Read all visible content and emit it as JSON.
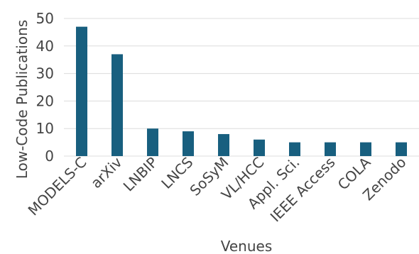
{
  "chart_data": {
    "type": "bar",
    "categories": [
      "MODELS-C",
      "arXiv",
      "LNBIP",
      "LNCS",
      "SoSyM",
      "VL/HCC",
      "Appl. Sci.",
      "IEEE Access",
      "COLA",
      "Zenodo"
    ],
    "values": [
      47,
      37,
      10,
      9,
      8,
      6,
      5,
      5,
      5,
      5
    ],
    "xlabel": "Venues",
    "ylabel": "Low-Code Publications",
    "ylim": [
      0,
      50
    ],
    "yticks": [
      0,
      10,
      20,
      30,
      40,
      50
    ],
    "grid": true,
    "bar_color": "#185f7f"
  }
}
